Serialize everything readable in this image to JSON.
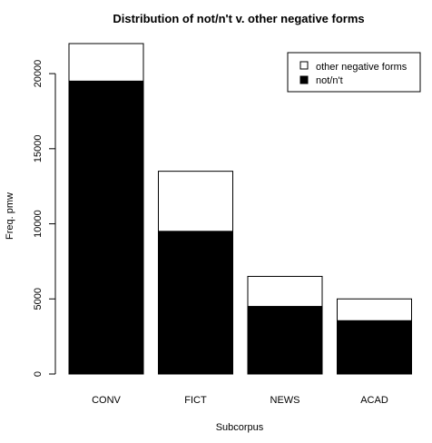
{
  "chart_data": {
    "type": "bar",
    "stacked": true,
    "title": "Distribution of not/n't v. other negative forms",
    "xlabel": "Subcorpus",
    "ylabel": "Freq. pmw",
    "categories": [
      "CONV",
      "FICT",
      "NEWS",
      "ACAD"
    ],
    "series": [
      {
        "name": "not/n't",
        "values": [
          19500,
          9500,
          4500,
          3550
        ],
        "color": "#000000"
      },
      {
        "name": "other negative forms",
        "values": [
          2500,
          4000,
          2000,
          1450
        ],
        "color": "#ffffff"
      }
    ],
    "ylim": [
      0,
      22000
    ],
    "yticks": [
      0,
      5000,
      10000,
      15000,
      20000
    ],
    "ytick_labels": [
      "0",
      "5000",
      "10000",
      "15000",
      "20000"
    ],
    "legend": {
      "position": "top-right",
      "order": [
        "other negative forms",
        "not/n't"
      ]
    },
    "grid": false
  }
}
